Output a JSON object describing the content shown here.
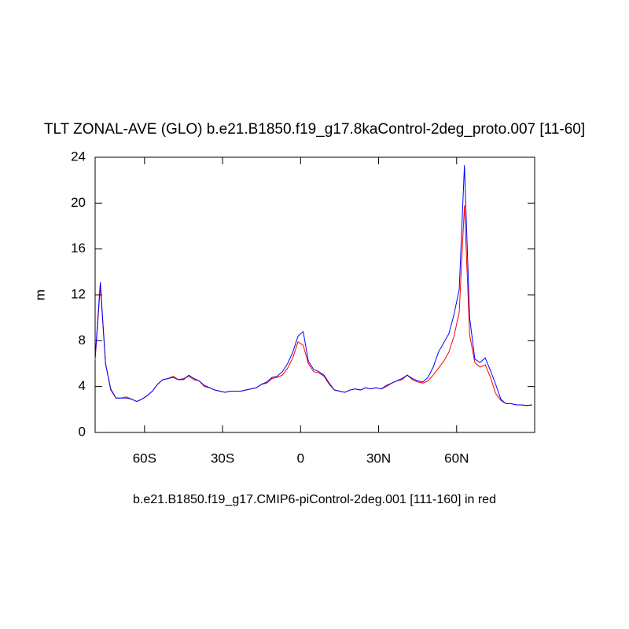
{
  "chart_data": {
    "type": "line",
    "title": "TLT ZONAL-AVE (GLO) b.e21.B1850.f19_g17.8kaControl-2deg_proto.007 [11-60]",
    "subtitle": "b.e21.B1850.f19_g17.CMIP6-piControl-2deg.001 [111-160] in red",
    "y_label": "m",
    "x": [
      -79,
      -77,
      -75,
      -73,
      -71,
      -69,
      -67,
      -65,
      -63,
      -61,
      -59,
      -57,
      -55,
      -53,
      -51,
      -49,
      -47,
      -45,
      -43,
      -41,
      -39,
      -37,
      -35,
      -33,
      -31,
      -29,
      -27,
      -25,
      -23,
      -21,
      -19,
      -17,
      -15,
      -13,
      -11,
      -9,
      -7,
      -5,
      -3,
      -1,
      1,
      3,
      5,
      7,
      9,
      11,
      13,
      15,
      17,
      19,
      21,
      23,
      25,
      27,
      29,
      31,
      33,
      35,
      37,
      39,
      41,
      43,
      45,
      47,
      49,
      51,
      53,
      55,
      57,
      59,
      61,
      63,
      65,
      67,
      69,
      71,
      73,
      75,
      77,
      79,
      81,
      83,
      85,
      87,
      89
    ],
    "series": [
      {
        "color": "#ff0000",
        "values": [
          6.3,
          12.8,
          6.0,
          3.7,
          3.0,
          3.0,
          3.1,
          2.9,
          2.7,
          2.9,
          3.2,
          3.6,
          4.2,
          4.6,
          4.7,
          4.9,
          4.6,
          4.7,
          4.9,
          4.6,
          4.5,
          4.0,
          3.9,
          3.7,
          3.6,
          3.5,
          3.6,
          3.6,
          3.6,
          3.7,
          3.8,
          3.9,
          4.2,
          4.3,
          4.7,
          4.8,
          5.0,
          5.6,
          6.5,
          7.9,
          7.6,
          6.0,
          5.3,
          5.2,
          4.9,
          4.2,
          3.7,
          3.6,
          3.5,
          3.7,
          3.8,
          3.7,
          3.9,
          3.8,
          3.9,
          3.8,
          4.0,
          4.3,
          4.5,
          4.6,
          5.0,
          4.6,
          4.4,
          4.3,
          4.5,
          5.0,
          5.6,
          6.2,
          7.0,
          8.4,
          10.5,
          19.8,
          8.5,
          6.1,
          5.7,
          5.9,
          4.8,
          3.4,
          2.8,
          2.5,
          2.5,
          2.4,
          2.4,
          2.35,
          2.4
        ]
      },
      {
        "color": "#0000ff",
        "values": [
          6.5,
          13.1,
          6.0,
          3.8,
          3.0,
          3.0,
          3.0,
          2.9,
          2.7,
          2.9,
          3.2,
          3.6,
          4.2,
          4.6,
          4.7,
          4.8,
          4.6,
          4.6,
          5.0,
          4.7,
          4.5,
          4.1,
          3.9,
          3.7,
          3.6,
          3.5,
          3.6,
          3.6,
          3.6,
          3.7,
          3.8,
          3.9,
          4.2,
          4.4,
          4.8,
          4.9,
          5.3,
          6.0,
          7.0,
          8.4,
          8.8,
          6.2,
          5.5,
          5.3,
          5.0,
          4.3,
          3.7,
          3.6,
          3.5,
          3.7,
          3.8,
          3.7,
          3.9,
          3.8,
          3.9,
          3.8,
          4.1,
          4.3,
          4.5,
          4.7,
          5.0,
          4.7,
          4.5,
          4.4,
          4.8,
          5.7,
          7.0,
          7.8,
          8.6,
          10.3,
          12.5,
          23.3,
          10.0,
          6.4,
          6.1,
          6.5,
          5.4,
          4.2,
          2.9,
          2.5,
          2.5,
          2.4,
          2.4,
          2.35,
          2.4
        ]
      }
    ],
    "xlim": [
      -79,
      90
    ],
    "xticks": [
      {
        "value": -60,
        "label": "60S"
      },
      {
        "value": -30,
        "label": "30S"
      },
      0,
      {
        "value": 30,
        "label": "30N"
      },
      {
        "value": 60,
        "label": "60N"
      }
    ],
    "ylim": [
      0,
      24
    ],
    "yticks": [
      0,
      4,
      8,
      12,
      16,
      20,
      24
    ]
  }
}
